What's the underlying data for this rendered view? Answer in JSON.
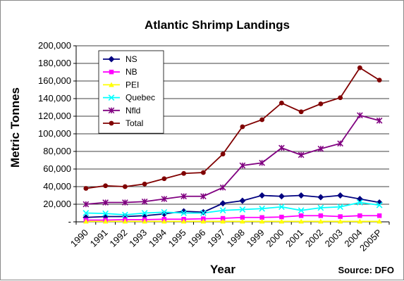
{
  "chart_data": {
    "type": "line",
    "title": "Atlantic Shrimp Landings",
    "xlabel": "Year",
    "ylabel": "Metric Tonnes",
    "source": "Source: DFO",
    "ylim": [
      0,
      200000
    ],
    "yticks": [
      0,
      20000,
      40000,
      60000,
      80000,
      100000,
      120000,
      140000,
      160000,
      180000,
      200000
    ],
    "ytick_labels": [
      "-",
      "20,000",
      "40,000",
      "60,000",
      "80,000",
      "100,000",
      "120,000",
      "140,000",
      "160,000",
      "180,000",
      "200,000"
    ],
    "categories": [
      "1990",
      "1991",
      "1992",
      "1993",
      "1994",
      "1995",
      "1996",
      "1997",
      "1998",
      "1999",
      "2000",
      "2001",
      "2002",
      "2003",
      "2004",
      "2005P"
    ],
    "grid": true,
    "legend_position": "top-left",
    "series": [
      {
        "name": "NS",
        "color": "#000080",
        "marker": "diamond",
        "values": [
          5000,
          6000,
          6000,
          7000,
          9000,
          12000,
          11000,
          21000,
          24000,
          30000,
          29000,
          30000,
          28000,
          30000,
          26000,
          22000
        ]
      },
      {
        "name": "NB",
        "color": "#ff00ff",
        "marker": "square",
        "values": [
          2000,
          2000,
          2500,
          2500,
          3000,
          3000,
          3500,
          4000,
          5000,
          5000,
          5500,
          7000,
          7000,
          6000,
          7000,
          7000
        ]
      },
      {
        "name": "PEI",
        "color": "#ffff00",
        "marker": "triangle",
        "values": [
          500,
          500,
          500,
          500,
          500,
          500,
          500,
          500,
          500,
          500,
          500,
          500,
          500,
          500,
          500,
          500
        ]
      },
      {
        "name": "Quebec",
        "color": "#00ffff",
        "marker": "x",
        "values": [
          10000,
          9500,
          8000,
          10000,
          11000,
          10000,
          10000,
          13000,
          14000,
          15000,
          17000,
          13000,
          16000,
          17000,
          22000,
          19000
        ]
      },
      {
        "name": "Nfld",
        "color": "#800080",
        "marker": "star",
        "values": [
          20000,
          22000,
          22000,
          23000,
          26000,
          29000,
          29000,
          39000,
          64000,
          67000,
          84000,
          76000,
          83000,
          89000,
          121000,
          115000
        ]
      },
      {
        "name": "Total",
        "color": "#800000",
        "marker": "circle",
        "values": [
          38000,
          41000,
          40000,
          43000,
          49000,
          55000,
          56000,
          77000,
          108000,
          116000,
          135000,
          125000,
          134000,
          141000,
          175000,
          161000
        ]
      }
    ]
  }
}
